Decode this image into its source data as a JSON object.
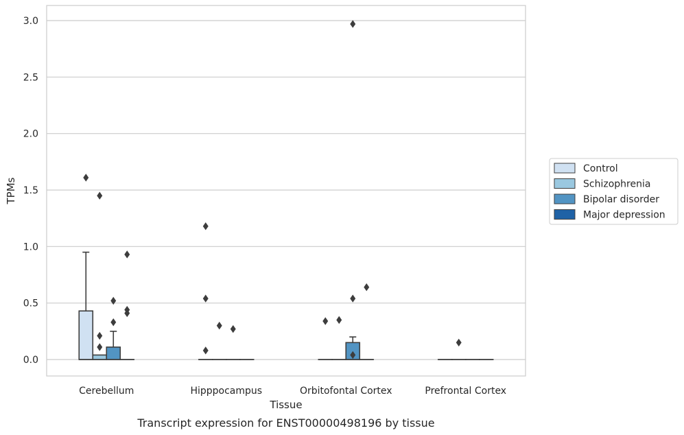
{
  "caption": "Transcript expression for ENST00000498196 by tissue",
  "chart_data": {
    "type": "box",
    "xlabel": "Tissue",
    "ylabel": "TPMs",
    "ylim": [
      -0.15,
      3.12
    ],
    "yticks": [
      "0.0",
      "0.5",
      "1.0",
      "1.5",
      "2.0",
      "2.5",
      "3.0"
    ],
    "grid": "horizontal",
    "legend_position": "right",
    "categories": [
      "Cerebellum",
      "Hipppocampus",
      "Orbitofontal Cortex",
      "Prefrontal Cortex"
    ],
    "series": [
      {
        "name": "Control",
        "color": "#d0e1f2",
        "boxes": [
          {
            "q1": 0.0,
            "median": 0.0,
            "q3": 0.43,
            "whisker_low": 0.0,
            "whisker_high": 0.95,
            "outliers": [
              1.61
            ]
          },
          {
            "q1": 0.0,
            "median": 0.0,
            "q3": 0.0,
            "whisker_low": 0.0,
            "whisker_high": 0.0,
            "outliers": [
              1.18,
              0.54,
              0.08
            ]
          },
          {
            "q1": 0.0,
            "median": 0.0,
            "q3": 0.0,
            "whisker_low": 0.0,
            "whisker_high": 0.0,
            "outliers": [
              0.34
            ]
          },
          {
            "q1": 0.0,
            "median": 0.0,
            "q3": 0.0,
            "whisker_low": 0.0,
            "whisker_high": 0.0,
            "outliers": []
          }
        ]
      },
      {
        "name": "Schizophrenia",
        "color": "#9ac8e0",
        "boxes": [
          {
            "q1": 0.0,
            "median": 0.0,
            "q3": 0.04,
            "whisker_low": 0.0,
            "whisker_high": 0.04,
            "outliers": [
              1.45,
              0.21,
              0.11
            ]
          },
          {
            "q1": 0.0,
            "median": 0.0,
            "q3": 0.0,
            "whisker_low": 0.0,
            "whisker_high": 0.0,
            "outliers": [
              0.3
            ]
          },
          {
            "q1": 0.0,
            "median": 0.0,
            "q3": 0.0,
            "whisker_low": 0.0,
            "whisker_high": 0.0,
            "outliers": [
              0.35
            ]
          },
          {
            "q1": 0.0,
            "median": 0.0,
            "q3": 0.0,
            "whisker_low": 0.0,
            "whisker_high": 0.0,
            "outliers": [
              0.15
            ]
          }
        ]
      },
      {
        "name": "Bipolar disorder",
        "color": "#5294c3",
        "boxes": [
          {
            "q1": 0.0,
            "median": 0.0,
            "q3": 0.11,
            "whisker_low": 0.0,
            "whisker_high": 0.25,
            "outliers": [
              0.52,
              0.33
            ]
          },
          {
            "q1": 0.0,
            "median": 0.0,
            "q3": 0.0,
            "whisker_low": 0.0,
            "whisker_high": 0.0,
            "outliers": [
              0.27
            ]
          },
          {
            "q1": 0.0,
            "median": 0.0,
            "q3": 0.15,
            "whisker_low": 0.0,
            "whisker_high": 0.2,
            "outliers": [
              2.97,
              0.54,
              0.04
            ]
          },
          {
            "q1": 0.0,
            "median": 0.0,
            "q3": 0.0,
            "whisker_low": 0.0,
            "whisker_high": 0.0,
            "outliers": []
          }
        ]
      },
      {
        "name": "Major depression",
        "color": "#1f62a6",
        "boxes": [
          {
            "q1": 0.0,
            "median": 0.0,
            "q3": 0.0,
            "whisker_low": 0.0,
            "whisker_high": 0.0,
            "outliers": [
              0.93,
              0.44,
              0.41
            ]
          },
          {
            "q1": 0.0,
            "median": 0.0,
            "q3": 0.0,
            "whisker_low": 0.0,
            "whisker_high": 0.0,
            "outliers": []
          },
          {
            "q1": 0.0,
            "median": 0.0,
            "q3": 0.0,
            "whisker_low": 0.0,
            "whisker_high": 0.0,
            "outliers": [
              0.64
            ]
          },
          {
            "q1": 0.0,
            "median": 0.0,
            "q3": 0.0,
            "whisker_low": 0.0,
            "whisker_high": 0.0,
            "outliers": []
          }
        ]
      }
    ]
  }
}
